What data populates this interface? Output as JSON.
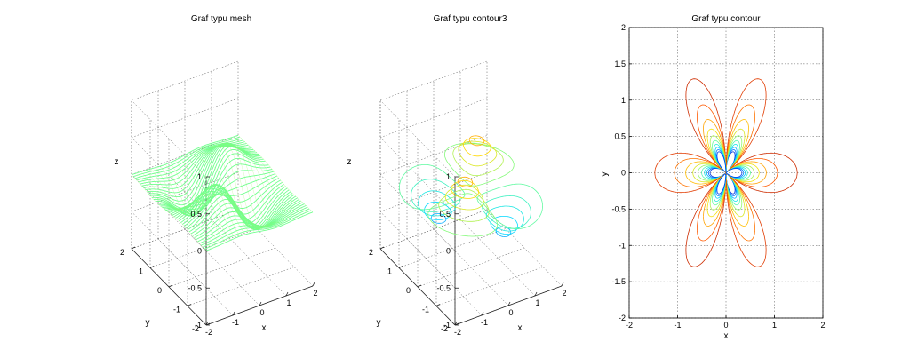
{
  "chart_data": [
    {
      "type": "surface-mesh",
      "title": "Graf typu mesh",
      "xlabel": "x",
      "ylabel": "y",
      "zlabel": "z",
      "xlim": [
        -2,
        2
      ],
      "ylim": [
        -2,
        2
      ],
      "zlim": [
        -1,
        1
      ],
      "xticks": [
        "-2",
        "-1",
        "0",
        "1",
        "2"
      ],
      "yticks": [
        "-2",
        "-1",
        "0",
        "1",
        "2"
      ],
      "zticks": [
        "-1",
        "-0.5",
        "0",
        "0.5",
        "1"
      ],
      "grid": true,
      "colormap": [
        "#00008f",
        "#0050ff",
        "#00dfff",
        "#70ff8f",
        "#ffdf00",
        "#ff5000",
        "#8f0000"
      ]
    },
    {
      "type": "contour3",
      "title": "Graf typu contour3",
      "xlabel": "x",
      "ylabel": "y",
      "zlabel": "z",
      "xlim": [
        -2,
        2
      ],
      "ylim": [
        -2,
        2
      ],
      "zlim": [
        -1,
        1
      ],
      "xticks": [
        "-2",
        "-1",
        "0",
        "1",
        "2"
      ],
      "yticks": [
        "-2",
        "-1",
        "0",
        "1",
        "2"
      ],
      "zticks": [
        "-1",
        "-0.5",
        "0",
        "0.5",
        "1"
      ],
      "grid": true,
      "levels": 20
    },
    {
      "type": "contour",
      "title": "Graf typu contour",
      "xlabel": "x",
      "ylabel": "y",
      "xlim": [
        -2,
        2
      ],
      "ylim": [
        -2,
        2
      ],
      "xticks": [
        "-2",
        "-1",
        "0",
        "1",
        "2"
      ],
      "yticks": [
        "-2",
        "-1.5",
        "-1",
        "-0.5",
        "0",
        "0.5",
        "1",
        "1.5",
        "2"
      ],
      "grid": true,
      "levels": 20
    }
  ]
}
